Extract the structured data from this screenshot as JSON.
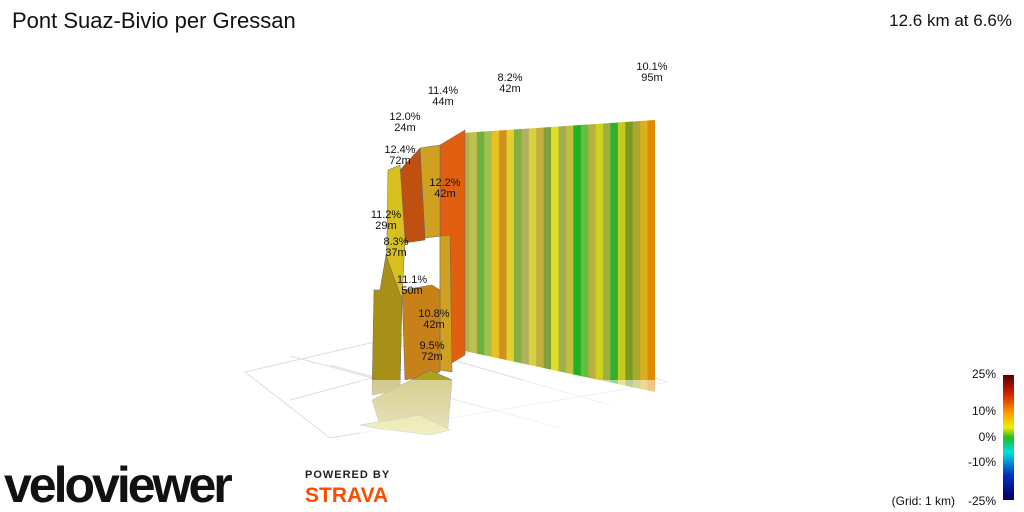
{
  "header": {
    "title": "Pont Suaz-Bivio per Gressan",
    "summary": "12.6 km at 6.6%"
  },
  "annotations": [
    {
      "grade": "10.1%",
      "length": "95m"
    },
    {
      "grade": "8.2%",
      "length": "42m"
    },
    {
      "grade": "11.4%",
      "length": "44m"
    },
    {
      "grade": "12.0%",
      "length": "24m"
    },
    {
      "grade": "12.4%",
      "length": "72m"
    },
    {
      "grade": "12.2%",
      "length": "42m"
    },
    {
      "grade": "11.2%",
      "length": "29m"
    },
    {
      "grade": "8.3%",
      "length": "37m"
    },
    {
      "grade": "11.1%",
      "length": "50m"
    },
    {
      "grade": "10.8%",
      "length": "42m"
    },
    {
      "grade": "9.5%",
      "length": "72m"
    }
  ],
  "legend": {
    "labels": [
      "25%",
      "10%",
      "0%",
      "-10%",
      "-25%"
    ],
    "grid_note": "(Grid: 1 km)"
  },
  "branding": {
    "logo": "veloviewer",
    "powered": "POWERED BY",
    "partner": "STRAVA"
  }
}
